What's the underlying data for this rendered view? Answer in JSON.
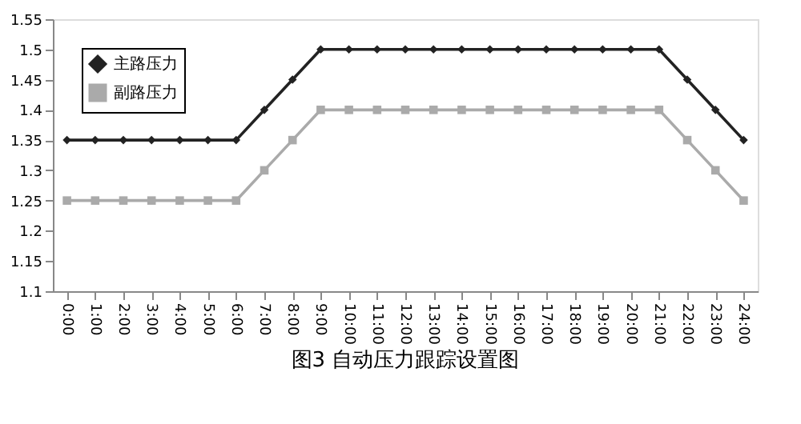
{
  "chart_data": {
    "type": "line",
    "title": "图3 自动压力跟踪设置图",
    "categories": [
      "0:00",
      "1:00",
      "2:00",
      "3:00",
      "4:00",
      "5:00",
      "6:00",
      "7:00",
      "8:00",
      "9:00",
      "10:00",
      "11:00",
      "12:00",
      "13:00",
      "14:00",
      "15:00",
      "16:00",
      "17:00",
      "18:00",
      "19:00",
      "20:00",
      "21:00",
      "22:00",
      "23:00",
      "24:00"
    ],
    "series": [
      {
        "name": "主路压力",
        "color": "#222222",
        "marker": "diamond",
        "values": [
          1.35,
          1.35,
          1.35,
          1.35,
          1.35,
          1.35,
          1.35,
          1.4,
          1.45,
          1.5,
          1.5,
          1.5,
          1.5,
          1.5,
          1.5,
          1.5,
          1.5,
          1.5,
          1.5,
          1.5,
          1.5,
          1.5,
          1.45,
          1.4,
          1.35
        ]
      },
      {
        "name": "副路压力",
        "color": "#aaaaaa",
        "marker": "square",
        "values": [
          1.25,
          1.25,
          1.25,
          1.25,
          1.25,
          1.25,
          1.25,
          1.3,
          1.35,
          1.4,
          1.4,
          1.4,
          1.4,
          1.4,
          1.4,
          1.4,
          1.4,
          1.4,
          1.4,
          1.4,
          1.4,
          1.4,
          1.35,
          1.3,
          1.25
        ]
      }
    ],
    "ylim": [
      1.1,
      1.55
    ],
    "yticks": [
      1.1,
      1.15,
      1.2,
      1.25,
      1.3,
      1.35,
      1.4,
      1.45,
      1.5,
      1.55
    ],
    "grid": false,
    "legend": "top left",
    "line_style": "solid"
  }
}
